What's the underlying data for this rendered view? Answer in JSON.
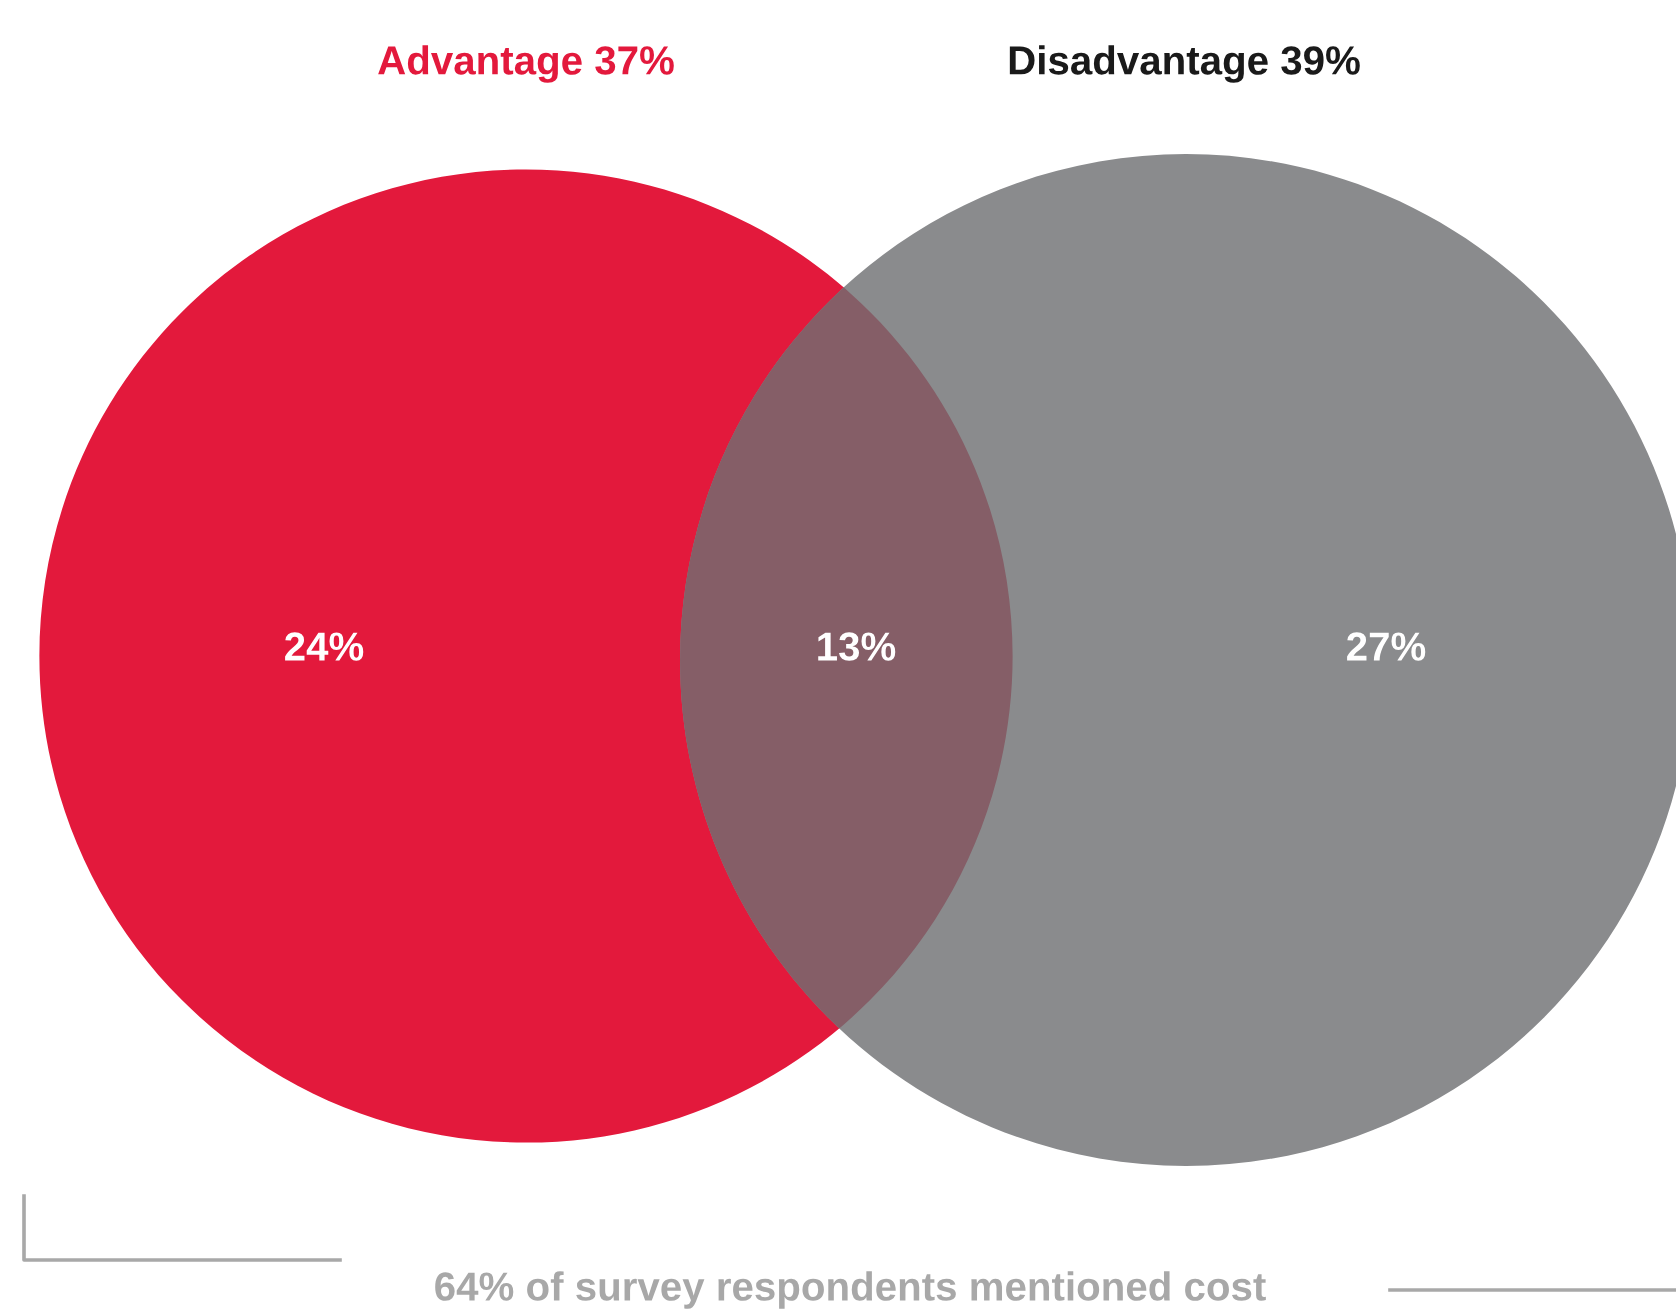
{
  "chart_data": {
    "type": "other",
    "categories": [
      null,
      null,
      null
    ],
    "values": [
      24,
      13,
      27
    ],
    "value_labels": [
      "24%",
      "13%",
      "27%"
    ],
    "colors": [
      "#e3193c",
      "#855e67",
      "#8a8b8d"
    ],
    "annotations": [
      "Advantage 37%",
      "Disadvantage 39%",
      "64% of survey respondents mentioned cost"
    ]
  }
}
